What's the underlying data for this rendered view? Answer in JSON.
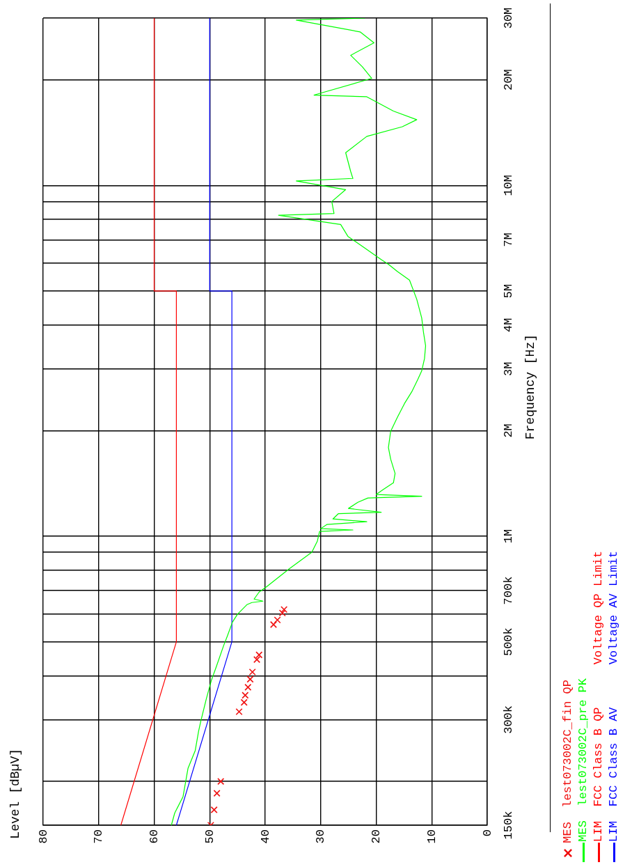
{
  "chart_data": {
    "type": "line",
    "annotations": [
      "Level [dBµV]"
    ],
    "ylabel": "Frequency [Hz]",
    "log": "y",
    "grid": true,
    "legend": "bottom",
    "ylim": [
      150000,
      30000000
    ],
    "xlim": [
      80,
      0
    ],
    "yticks": [
      {
        "value": 150000,
        "label": "150k"
      },
      {
        "value": 200000,
        "label": null
      },
      {
        "value": 300000,
        "label": "300k"
      },
      {
        "value": 400000,
        "label": null
      },
      {
        "value": 500000,
        "label": "500k"
      },
      {
        "value": 600000,
        "label": null
      },
      {
        "value": 700000,
        "label": "700k"
      },
      {
        "value": 800000,
        "label": null
      },
      {
        "value": 900000,
        "label": null
      },
      {
        "value": 1000000,
        "label": "1M"
      },
      {
        "value": 2000000,
        "label": "2M"
      },
      {
        "value": 3000000,
        "label": "3M"
      },
      {
        "value": 4000000,
        "label": "4M"
      },
      {
        "value": 5000000,
        "label": "5M"
      },
      {
        "value": 6000000,
        "label": null
      },
      {
        "value": 7000000,
        "label": "7M"
      },
      {
        "value": 8000000,
        "label": null
      },
      {
        "value": 9000000,
        "label": null
      },
      {
        "value": 10000000,
        "label": "10M"
      },
      {
        "value": 20000000,
        "label": "20M"
      },
      {
        "value": 30000000,
        "label": "30M"
      }
    ],
    "xticks": [
      80,
      70,
      60,
      50,
      40,
      30,
      20,
      10,
      0
    ],
    "series": [
      {
        "name": "MES  lest073002C_fin QP",
        "type": "scatter",
        "marker": "cross",
        "color": "#f01010",
        "values": [
          150000,
          166000,
          185000,
          200000,
          316000,
          336000,
          352000,
          371000,
          391000,
          410000,
          445000,
          459000,
          560000,
          577000,
          604000,
          618000
        ],
        "x": [
          49.8,
          49.2,
          48.7,
          48.0,
          44.7,
          43.8,
          43.6,
          43.1,
          42.7,
          42.3,
          41.5,
          41.1,
          38.5,
          37.8,
          36.9,
          36.6
        ]
      },
      {
        "name": "MES  lest073002C_pre PK",
        "type": "line",
        "color": "#00ff00",
        "values": [
          150000,
          162500,
          181000,
          218000,
          245000,
          278000,
          297000,
          344000,
          388000,
          425000,
          487000,
          520000,
          569000,
          599000,
          638000,
          647000,
          653000,
          662000,
          693000,
          719000,
          807000,
          900000,
          969000,
          1032000,
          1042000,
          1051000,
          1080000,
          1100000,
          1120000,
          1160000,
          1170000,
          1200000,
          1250000,
          1285000,
          1300000,
          1315000,
          1360000,
          1420000,
          1510000,
          1660000,
          1790000,
          1990000,
          2180000,
          2390000,
          2580000,
          2800000,
          2960000,
          3210000,
          3490000,
          3830000,
          4190000,
          4740000,
          5370000,
          5690000,
          5960000,
          6150000,
          6620000,
          7160000,
          7740000,
          8220000,
          8320000,
          9000000,
          9730000,
          10300000,
          10470000,
          10960000,
          12400000,
          13800000,
          14700000,
          15400000,
          16300000,
          17900000,
          18100000,
          20200000,
          21800000,
          23500000,
          25500000,
          27400000,
          29600000,
          30000000
        ],
        "x": [
          56.9,
          56.3,
          54.8,
          53.9,
          52.6,
          52.0,
          51.6,
          50.6,
          49.7,
          48.8,
          47.5,
          46.8,
          45.9,
          45.0,
          43.3,
          42.4,
          40.4,
          42.0,
          41.1,
          39.7,
          35.7,
          31.6,
          30.6,
          30.2,
          24.2,
          30.0,
          28.9,
          21.7,
          27.8,
          26.8,
          19.1,
          25.0,
          23.3,
          21.5,
          11.8,
          20.0,
          18.7,
          16.9,
          16.6,
          17.4,
          17.8,
          17.4,
          16.2,
          14.9,
          13.6,
          12.5,
          11.8,
          11.3,
          11.1,
          11.5,
          11.8,
          12.7,
          14.0,
          16.2,
          17.8,
          19.1,
          22.0,
          25.1,
          26.4,
          37.6,
          27.6,
          28.0,
          25.5,
          34.4,
          24.2,
          24.6,
          25.5,
          21.7,
          15.3,
          12.7,
          16.9,
          21.7,
          31.2,
          20.8,
          22.5,
          24.6,
          20.4,
          22.9,
          34.4,
          22.0
        ]
      },
      {
        "name": "LIM  FCC Class B QP      Voltage QP Limit",
        "type": "line",
        "color": "#ff0000",
        "values": [
          150000,
          500000,
          500000,
          5000000,
          5000000,
          30000000
        ],
        "x": [
          66,
          56,
          56,
          56,
          60,
          60
        ]
      },
      {
        "name": "LIM  FCC Class B AV      Voltage AV Limit",
        "type": "line",
        "color": "#0000ff",
        "values": [
          150000,
          500000,
          5000000,
          5000000,
          30000000
        ],
        "x": [
          56,
          46,
          46,
          50,
          50
        ]
      }
    ]
  }
}
